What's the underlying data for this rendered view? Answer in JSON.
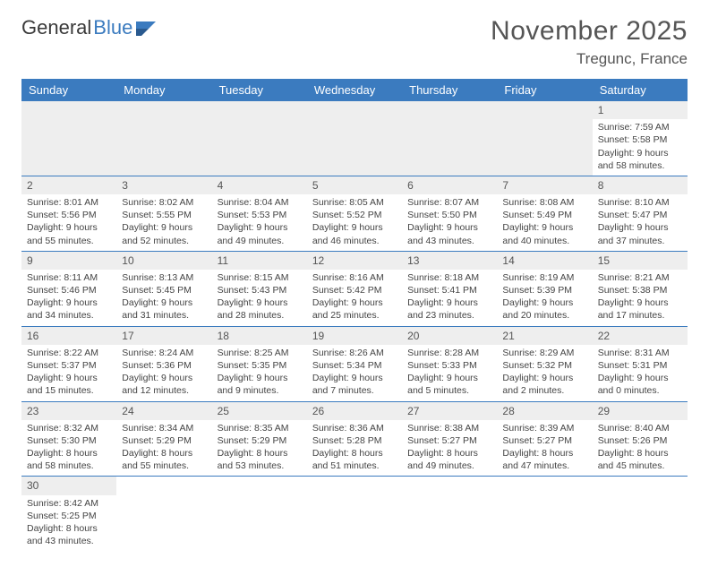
{
  "logo": {
    "part1": "General",
    "part2": "Blue"
  },
  "title": "November 2025",
  "location": "Tregunc, France",
  "colors": {
    "headerBg": "#3b7bbf",
    "headerText": "#ffffff",
    "dayBg": "#eeeeee",
    "border": "#3b7bbf",
    "text": "#444444"
  },
  "dayNames": [
    "Sunday",
    "Monday",
    "Tuesday",
    "Wednesday",
    "Thursday",
    "Friday",
    "Saturday"
  ],
  "weeks": [
    [
      null,
      null,
      null,
      null,
      null,
      null,
      {
        "d": "1",
        "sr": "7:59 AM",
        "ss": "5:58 PM",
        "dl": "9 hours and 58 minutes."
      }
    ],
    [
      {
        "d": "2",
        "sr": "8:01 AM",
        "ss": "5:56 PM",
        "dl": "9 hours and 55 minutes."
      },
      {
        "d": "3",
        "sr": "8:02 AM",
        "ss": "5:55 PM",
        "dl": "9 hours and 52 minutes."
      },
      {
        "d": "4",
        "sr": "8:04 AM",
        "ss": "5:53 PM",
        "dl": "9 hours and 49 minutes."
      },
      {
        "d": "5",
        "sr": "8:05 AM",
        "ss": "5:52 PM",
        "dl": "9 hours and 46 minutes."
      },
      {
        "d": "6",
        "sr": "8:07 AM",
        "ss": "5:50 PM",
        "dl": "9 hours and 43 minutes."
      },
      {
        "d": "7",
        "sr": "8:08 AM",
        "ss": "5:49 PM",
        "dl": "9 hours and 40 minutes."
      },
      {
        "d": "8",
        "sr": "8:10 AM",
        "ss": "5:47 PM",
        "dl": "9 hours and 37 minutes."
      }
    ],
    [
      {
        "d": "9",
        "sr": "8:11 AM",
        "ss": "5:46 PM",
        "dl": "9 hours and 34 minutes."
      },
      {
        "d": "10",
        "sr": "8:13 AM",
        "ss": "5:45 PM",
        "dl": "9 hours and 31 minutes."
      },
      {
        "d": "11",
        "sr": "8:15 AM",
        "ss": "5:43 PM",
        "dl": "9 hours and 28 minutes."
      },
      {
        "d": "12",
        "sr": "8:16 AM",
        "ss": "5:42 PM",
        "dl": "9 hours and 25 minutes."
      },
      {
        "d": "13",
        "sr": "8:18 AM",
        "ss": "5:41 PM",
        "dl": "9 hours and 23 minutes."
      },
      {
        "d": "14",
        "sr": "8:19 AM",
        "ss": "5:39 PM",
        "dl": "9 hours and 20 minutes."
      },
      {
        "d": "15",
        "sr": "8:21 AM",
        "ss": "5:38 PM",
        "dl": "9 hours and 17 minutes."
      }
    ],
    [
      {
        "d": "16",
        "sr": "8:22 AM",
        "ss": "5:37 PM",
        "dl": "9 hours and 15 minutes."
      },
      {
        "d": "17",
        "sr": "8:24 AM",
        "ss": "5:36 PM",
        "dl": "9 hours and 12 minutes."
      },
      {
        "d": "18",
        "sr": "8:25 AM",
        "ss": "5:35 PM",
        "dl": "9 hours and 9 minutes."
      },
      {
        "d": "19",
        "sr": "8:26 AM",
        "ss": "5:34 PM",
        "dl": "9 hours and 7 minutes."
      },
      {
        "d": "20",
        "sr": "8:28 AM",
        "ss": "5:33 PM",
        "dl": "9 hours and 5 minutes."
      },
      {
        "d": "21",
        "sr": "8:29 AM",
        "ss": "5:32 PM",
        "dl": "9 hours and 2 minutes."
      },
      {
        "d": "22",
        "sr": "8:31 AM",
        "ss": "5:31 PM",
        "dl": "9 hours and 0 minutes."
      }
    ],
    [
      {
        "d": "23",
        "sr": "8:32 AM",
        "ss": "5:30 PM",
        "dl": "8 hours and 58 minutes."
      },
      {
        "d": "24",
        "sr": "8:34 AM",
        "ss": "5:29 PM",
        "dl": "8 hours and 55 minutes."
      },
      {
        "d": "25",
        "sr": "8:35 AM",
        "ss": "5:29 PM",
        "dl": "8 hours and 53 minutes."
      },
      {
        "d": "26",
        "sr": "8:36 AM",
        "ss": "5:28 PM",
        "dl": "8 hours and 51 minutes."
      },
      {
        "d": "27",
        "sr": "8:38 AM",
        "ss": "5:27 PM",
        "dl": "8 hours and 49 minutes."
      },
      {
        "d": "28",
        "sr": "8:39 AM",
        "ss": "5:27 PM",
        "dl": "8 hours and 47 minutes."
      },
      {
        "d": "29",
        "sr": "8:40 AM",
        "ss": "5:26 PM",
        "dl": "8 hours and 45 minutes."
      }
    ],
    [
      {
        "d": "30",
        "sr": "8:42 AM",
        "ss": "5:25 PM",
        "dl": "8 hours and 43 minutes."
      },
      null,
      null,
      null,
      null,
      null,
      null
    ]
  ],
  "labels": {
    "sunrise": "Sunrise:",
    "sunset": "Sunset:",
    "daylight": "Daylight:"
  }
}
